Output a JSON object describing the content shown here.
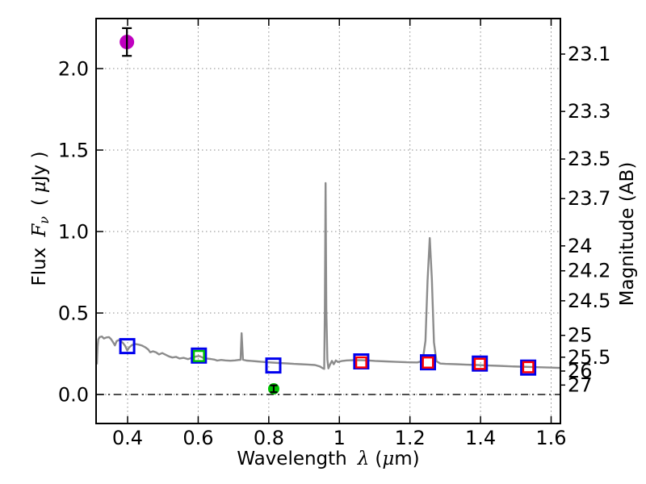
{
  "figure": {
    "background": "#ffffff"
  },
  "chart_data": {
    "type": "line",
    "title": "",
    "x_axis": {
      "label_prefix": "Wavelength",
      "label_symbol": "λ",
      "label_unit_open": "(",
      "label_unit_mu": "μ",
      "label_unit_close": "m)",
      "range": [
        0.313,
        1.624
      ],
      "ticks": [
        0.4,
        0.6,
        0.8,
        1.0,
        1.2,
        1.4,
        1.6
      ],
      "tick_labels": [
        "0.4",
        "0.6",
        "0.8",
        "1",
        "1.2",
        "1.4",
        "1.6"
      ],
      "grid": true
    },
    "y_axis_left": {
      "label_prefix": "Flux",
      "label_symbol_main": "F",
      "label_symbol_sub": "ν",
      "label_unit_open": "(",
      "label_unit_mu": "μ",
      "label_unit_close": "Jy )",
      "range": [
        -0.173,
        2.302
      ],
      "ticks": [
        0.0,
        0.5,
        1.0,
        1.5,
        2.0
      ],
      "tick_labels": [
        "0.0",
        "0.5",
        "1.0",
        "1.5",
        "2.0"
      ],
      "grid": true
    },
    "y_axis_right": {
      "label": "Magnitude (AB)",
      "ticks": [
        {
          "label": "23.1",
          "flux": 2.089
        },
        {
          "label": "23.3",
          "flux": 1.737
        },
        {
          "label": "23.5",
          "flux": 1.445
        },
        {
          "label": "23.7",
          "flux": 1.202
        },
        {
          "label": "24",
          "flux": 0.912
        },
        {
          "label": "24.2",
          "flux": 0.759
        },
        {
          "label": "24.5",
          "flux": 0.575
        },
        {
          "label": "25",
          "flux": 0.363
        },
        {
          "label": "25.5",
          "flux": 0.229
        },
        {
          "label": "26",
          "flux": 0.144
        },
        {
          "label": "27",
          "flux": 0.058
        }
      ]
    },
    "zero_line": {
      "y": 0.0,
      "style": "dashdot",
      "color": "#000000"
    },
    "grid_color": "#8a8a8a",
    "spectrum": {
      "color": "#8c8c8c",
      "points": [
        [
          0.313,
          0.185
        ],
        [
          0.315,
          0.295
        ],
        [
          0.317,
          0.338
        ],
        [
          0.321,
          0.352
        ],
        [
          0.327,
          0.356
        ],
        [
          0.333,
          0.344
        ],
        [
          0.34,
          0.35
        ],
        [
          0.347,
          0.352
        ],
        [
          0.353,
          0.34
        ],
        [
          0.359,
          0.32
        ],
        [
          0.364,
          0.301
        ],
        [
          0.369,
          0.328
        ],
        [
          0.375,
          0.334
        ],
        [
          0.381,
          0.327
        ],
        [
          0.387,
          0.316
        ],
        [
          0.393,
          0.298
        ],
        [
          0.399,
          0.27
        ],
        [
          0.405,
          0.29
        ],
        [
          0.413,
          0.304
        ],
        [
          0.421,
          0.31
        ],
        [
          0.431,
          0.306
        ],
        [
          0.441,
          0.3
        ],
        [
          0.45,
          0.29
        ],
        [
          0.458,
          0.277
        ],
        [
          0.464,
          0.259
        ],
        [
          0.472,
          0.265
        ],
        [
          0.481,
          0.258
        ],
        [
          0.489,
          0.246
        ],
        [
          0.498,
          0.254
        ],
        [
          0.508,
          0.244
        ],
        [
          0.517,
          0.234
        ],
        [
          0.527,
          0.227
        ],
        [
          0.537,
          0.231
        ],
        [
          0.547,
          0.221
        ],
        [
          0.559,
          0.225
        ],
        [
          0.571,
          0.217
        ],
        [
          0.583,
          0.226
        ],
        [
          0.595,
          0.234
        ],
        [
          0.604,
          0.236
        ],
        [
          0.613,
          0.226
        ],
        [
          0.623,
          0.221
        ],
        [
          0.635,
          0.218
        ],
        [
          0.646,
          0.214
        ],
        [
          0.654,
          0.208
        ],
        [
          0.665,
          0.212
        ],
        [
          0.677,
          0.209
        ],
        [
          0.691,
          0.207
        ],
        [
          0.704,
          0.209
        ],
        [
          0.715,
          0.212
        ],
        [
          0.72,
          0.213
        ],
        [
          0.723,
          0.376
        ],
        [
          0.727,
          0.213
        ],
        [
          0.737,
          0.208
        ],
        [
          0.751,
          0.206
        ],
        [
          0.766,
          0.203
        ],
        [
          0.781,
          0.2
        ],
        [
          0.796,
          0.198
        ],
        [
          0.811,
          0.196
        ],
        [
          0.831,
          0.193
        ],
        [
          0.851,
          0.191
        ],
        [
          0.871,
          0.188
        ],
        [
          0.891,
          0.186
        ],
        [
          0.911,
          0.184
        ],
        [
          0.931,
          0.181
        ],
        [
          0.945,
          0.172
        ],
        [
          0.953,
          0.161
        ],
        [
          0.957,
          0.157
        ],
        [
          0.959,
          0.52
        ],
        [
          0.961,
          1.297
        ],
        [
          0.963,
          0.52
        ],
        [
          0.966,
          0.215
        ],
        [
          0.969,
          0.16
        ],
        [
          0.974,
          0.186
        ],
        [
          0.979,
          0.206
        ],
        [
          0.984,
          0.186
        ],
        [
          0.99,
          0.209
        ],
        [
          0.996,
          0.199
        ],
        [
          1.006,
          0.205
        ],
        [
          1.021,
          0.209
        ],
        [
          1.041,
          0.211
        ],
        [
          1.061,
          0.21
        ],
        [
          1.081,
          0.209
        ],
        [
          1.101,
          0.206
        ],
        [
          1.131,
          0.203
        ],
        [
          1.161,
          0.2
        ],
        [
          1.191,
          0.198
        ],
        [
          1.221,
          0.197
        ],
        [
          1.236,
          0.206
        ],
        [
          1.244,
          0.33
        ],
        [
          1.25,
          0.7
        ],
        [
          1.256,
          0.96
        ],
        [
          1.262,
          0.71
        ],
        [
          1.268,
          0.32
        ],
        [
          1.275,
          0.204
        ],
        [
          1.286,
          0.19
        ],
        [
          1.301,
          0.188
        ],
        [
          1.331,
          0.186
        ],
        [
          1.361,
          0.183
        ],
        [
          1.391,
          0.181
        ],
        [
          1.421,
          0.178
        ],
        [
          1.451,
          0.176
        ],
        [
          1.481,
          0.173
        ],
        [
          1.511,
          0.171
        ],
        [
          1.541,
          0.169
        ],
        [
          1.571,
          0.167
        ],
        [
          1.601,
          0.165
        ],
        [
          1.624,
          0.163
        ]
      ]
    },
    "photometry": {
      "blue_squares": {
        "color": "#0000ee",
        "size": 17,
        "stroke": 3,
        "points": [
          [
            0.399,
            0.297
          ],
          [
            0.602,
            0.239
          ],
          [
            0.813,
            0.178
          ],
          [
            1.062,
            0.203
          ],
          [
            1.251,
            0.198
          ],
          [
            1.398,
            0.19
          ],
          [
            1.535,
            0.165
          ]
        ]
      },
      "green_squares": {
        "color": "#00c400",
        "size": 12.5,
        "stroke": 2.4,
        "points": [
          [
            0.602,
            0.236
          ]
        ]
      },
      "red_squares": {
        "color": "#ff0000",
        "size": 12.5,
        "stroke": 2.4,
        "points": [
          [
            1.062,
            0.197
          ],
          [
            1.251,
            0.196
          ],
          [
            1.398,
            0.188
          ],
          [
            1.535,
            0.168
          ]
        ]
      },
      "magenta_point": {
        "color": "#bf00bf",
        "x": 0.398,
        "y": 2.163,
        "yerr": 0.085,
        "radius": 9,
        "cap_halfwidth": 6
      },
      "green_point": {
        "color": "#00c400",
        "x": 0.814,
        "y": 0.035,
        "yerr": 0.021,
        "radius": 7,
        "cap_halfwidth": 4.5
      }
    }
  }
}
